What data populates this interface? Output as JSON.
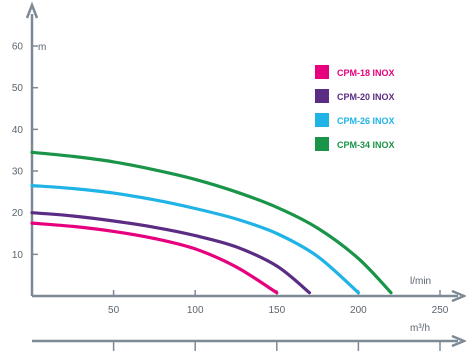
{
  "chart_data": {
    "type": "line",
    "title": "",
    "ylabel": "m",
    "xlabel": "l/min",
    "x2label": "m³/h",
    "xlim": [
      0,
      260
    ],
    "ylim": [
      0,
      60
    ],
    "x_ticks": [
      50,
      100,
      150,
      200,
      250
    ],
    "y_ticks": [
      10,
      20,
      30,
      40,
      50,
      60
    ],
    "grid": false,
    "legend_position": "top-right",
    "series": [
      {
        "name": "CPM-18 INOX",
        "color": "#e6007e",
        "x": [
          0,
          25,
          50,
          75,
          100,
          125,
          150
        ],
        "y": [
          17.5,
          16.7,
          15.5,
          13.8,
          11.3,
          7.0,
          0.8
        ]
      },
      {
        "name": "CPM-20 INOX",
        "color": "#5b2c83",
        "x": [
          0,
          25,
          50,
          75,
          100,
          125,
          150,
          170
        ],
        "y": [
          20.0,
          19.2,
          18.0,
          16.5,
          14.5,
          11.8,
          7.2,
          0.8
        ]
      },
      {
        "name": "CPM-26 INOX",
        "color": "#1fb3e6",
        "x": [
          0,
          25,
          50,
          75,
          100,
          125,
          150,
          175,
          200
        ],
        "y": [
          26.5,
          25.8,
          24.7,
          23.1,
          21.0,
          18.5,
          15.0,
          9.5,
          0.8
        ]
      },
      {
        "name": "CPM-34 INOX",
        "color": "#1a9448",
        "x": [
          0,
          25,
          50,
          75,
          100,
          125,
          150,
          175,
          200,
          220
        ],
        "y": [
          34.5,
          33.5,
          32.2,
          30.3,
          28.0,
          25.0,
          21.3,
          16.3,
          9.0,
          0.8
        ]
      }
    ]
  }
}
